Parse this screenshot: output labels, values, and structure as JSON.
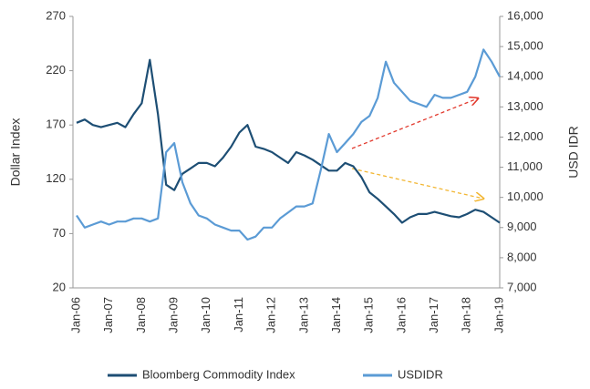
{
  "chart_data": {
    "type": "line",
    "categories": [
      "Jan-06",
      null,
      null,
      null,
      "Jan-07",
      null,
      null,
      null,
      "Jan-08",
      null,
      null,
      null,
      "Jan-09",
      null,
      null,
      null,
      "Jan-10",
      null,
      null,
      null,
      "Jan-11",
      null,
      null,
      null,
      "Jan-12",
      null,
      null,
      null,
      "Jan-13",
      null,
      null,
      null,
      "Jan-14",
      null,
      null,
      null,
      "Jan-15",
      null,
      null,
      null,
      "Jan-16",
      null,
      null,
      null,
      "Jan-17",
      null,
      null,
      null,
      "Jan-18",
      null,
      null,
      null,
      "Jan-19"
    ],
    "series": [
      {
        "name": "Bloomberg Commodity  Index",
        "color": "#1d4e74",
        "axis": "y",
        "values": [
          172,
          175,
          170,
          168,
          170,
          172,
          168,
          180,
          190,
          230,
          180,
          115,
          110,
          125,
          130,
          135,
          135,
          132,
          140,
          150,
          163,
          170,
          150,
          148,
          145,
          140,
          135,
          145,
          142,
          138,
          133,
          128,
          128,
          135,
          132,
          122,
          108,
          102,
          95,
          88,
          80,
          85,
          88,
          88,
          90,
          88,
          86,
          85,
          88,
          92,
          90,
          85,
          80
        ]
      },
      {
        "name": "USDIDR",
        "color": "#5b9bd5",
        "axis": "y2",
        "values": [
          9400,
          9000,
          9100,
          9200,
          9100,
          9200,
          9200,
          9300,
          9300,
          9200,
          9300,
          11500,
          11800,
          10500,
          9800,
          9400,
          9300,
          9100,
          9000,
          8900,
          8900,
          8600,
          8700,
          9000,
          9000,
          9300,
          9500,
          9700,
          9700,
          9800,
          10900,
          12100,
          11500,
          11800,
          12100,
          12500,
          12700,
          13300,
          14500,
          13800,
          13500,
          13200,
          13100,
          13000,
          13400,
          13300,
          13300,
          13400,
          13500,
          14000,
          14900,
          14500,
          14000
        ]
      }
    ],
    "y_label": "Dollar  Index",
    "y2_label": "USD IDR",
    "ylim": [
      20,
      270
    ],
    "yticks": [
      20,
      70,
      120,
      170,
      220,
      270
    ],
    "y2lim": [
      7000,
      16000
    ],
    "y2ticks": [
      {
        "value": 7000,
        "label": "7,000"
      },
      {
        "value": 8000,
        "label": "8,000"
      },
      {
        "value": 9000,
        "label": "9,000"
      },
      {
        "value": 10000,
        "label": "10,000"
      },
      {
        "value": 11000,
        "label": "11,000"
      },
      {
        "value": 12000,
        "label": "12,000"
      },
      {
        "value": 13000,
        "label": "13,000"
      },
      {
        "value": 14000,
        "label": "14,000"
      },
      {
        "value": 15000,
        "label": "15,000"
      },
      {
        "value": 16000,
        "label": "16,000"
      }
    ],
    "legend": "bottom"
  }
}
